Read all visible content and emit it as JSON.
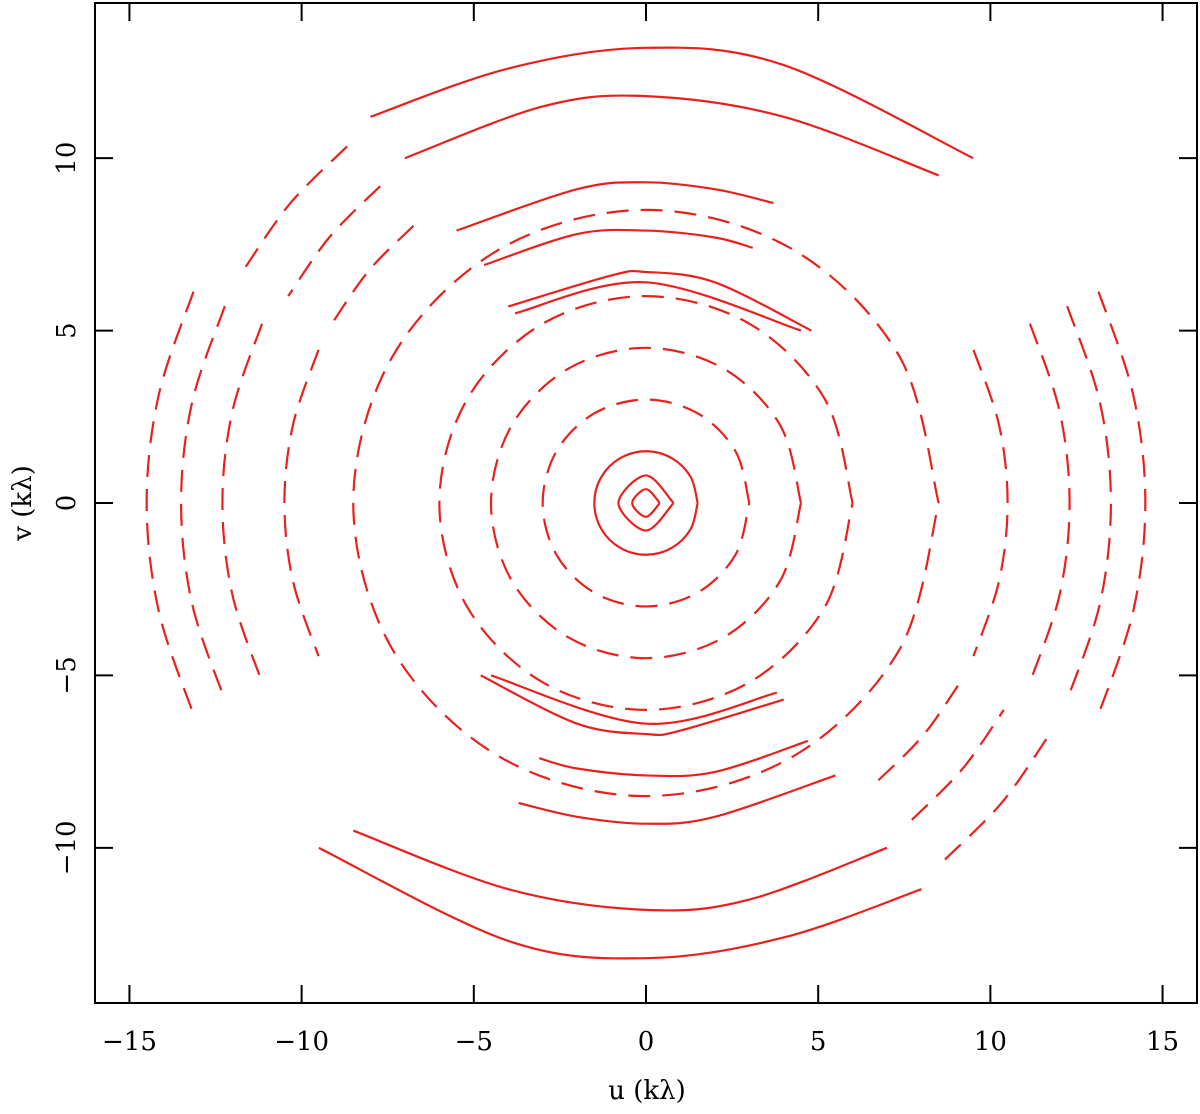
{
  "chart_data": {
    "type": "line",
    "xlabel": "u (kλ)",
    "ylabel": "v (kλ)",
    "xlim": [
      -16,
      16
    ],
    "ylim": [
      -14.5,
      14.5
    ],
    "xticks": [
      {
        "value": -15,
        "label": "−15"
      },
      {
        "value": -10,
        "label": "−10"
      },
      {
        "value": -5,
        "label": "−5"
      },
      0,
      5,
      10,
      15
    ],
    "yticks": [
      {
        "value": -10,
        "label": "−10"
      },
      {
        "value": -5,
        "label": "−5"
      },
      0,
      5,
      10
    ],
    "series": [
      {
        "color": "#e8211d",
        "style": "solid",
        "x": [
          -8,
          -4,
          0,
          4,
          9.5
        ],
        "y": [
          11.2,
          12.6,
          13.2,
          12.7,
          10
        ]
      },
      {
        "color": "#e8211d",
        "style": "solid",
        "x": [
          8,
          4,
          0,
          -4,
          -9.5
        ],
        "y": [
          -11.2,
          -12.6,
          -13.2,
          -12.7,
          -10
        ]
      },
      {
        "color": "#e8211d",
        "style": "solid",
        "x": [
          -7,
          -3,
          0,
          4,
          8.5
        ],
        "y": [
          10,
          11.5,
          11.8,
          11.2,
          9.5
        ]
      },
      {
        "color": "#e8211d",
        "style": "solid",
        "x": [
          7,
          3,
          0,
          -4,
          -8.5
        ],
        "y": [
          -10,
          -11.5,
          -11.8,
          -11.2,
          -9.5
        ]
      },
      {
        "color": "#e8211d",
        "style": "solid",
        "x": [
          -5.5,
          -2,
          0,
          2,
          3.7
        ],
        "y": [
          7.9,
          9.1,
          9.3,
          9.1,
          8.7
        ]
      },
      {
        "color": "#e8211d",
        "style": "solid",
        "x": [
          5.5,
          2,
          0,
          -2,
          -3.7
        ],
        "y": [
          -7.9,
          -9.1,
          -9.3,
          -9.1,
          -8.7
        ]
      },
      {
        "color": "#e8211d",
        "style": "solid",
        "x": [
          -4.7,
          -2,
          0,
          2,
          3.1
        ],
        "y": [
          6.9,
          7.8,
          7.9,
          7.7,
          7.4
        ]
      },
      {
        "color": "#e8211d",
        "style": "solid",
        "x": [
          4.7,
          2,
          0,
          -2,
          -3.1
        ],
        "y": [
          -6.9,
          -7.8,
          -7.9,
          -7.7,
          -7.4
        ]
      },
      {
        "color": "#e8211d",
        "style": "solid",
        "x": [
          -4,
          -1,
          0,
          2,
          4.8
        ],
        "y": [
          5.7,
          6.6,
          6.7,
          6.4,
          5
        ]
      },
      {
        "color": "#e8211d",
        "style": "solid",
        "x": [
          4,
          1,
          0,
          -2,
          -4.8
        ],
        "y": [
          -5.7,
          -6.6,
          -6.7,
          -6.4,
          -5
        ]
      },
      {
        "color": "#e8211d",
        "style": "solid",
        "x": [
          -3.8,
          0,
          4.5
        ],
        "y": [
          5.5,
          6.4,
          5
        ]
      },
      {
        "color": "#e8211d",
        "style": "solid",
        "x": [
          3.8,
          0,
          -4.5
        ],
        "y": [
          -5.5,
          -6.4,
          -5
        ]
      },
      {
        "color": "#e8211d",
        "style": "dashed",
        "x": [
          -13.14,
          -14.15,
          -14.5,
          -14.15,
          -13.14
        ],
        "y": [
          6.13,
          3.13,
          0,
          -3.13,
          -6.13
        ]
      },
      {
        "color": "#e8211d",
        "style": "dashed",
        "x": [
          13.14,
          14.15,
          14.5,
          14.15,
          13.14
        ],
        "y": [
          6.13,
          3.13,
          0,
          -3.13,
          -6.13
        ]
      },
      {
        "color": "#e8211d",
        "style": "dashed",
        "x": [
          -12.23,
          -13.18,
          -13.5,
          -13.18,
          -12.23
        ],
        "y": [
          5.71,
          2.92,
          0,
          -2.92,
          -5.71
        ]
      },
      {
        "color": "#e8211d",
        "style": "dashed",
        "x": [
          12.23,
          13.18,
          13.5,
          13.18,
          12.23
        ],
        "y": [
          5.71,
          2.92,
          0,
          -2.92,
          -5.71
        ]
      },
      {
        "color": "#e8211d",
        "style": "dashed",
        "x": [
          -11.15,
          -12.01,
          -12.3,
          -12.01,
          -11.15
        ],
        "y": [
          5.2,
          2.66,
          0,
          -2.66,
          -5.2
        ]
      },
      {
        "color": "#e8211d",
        "style": "dashed",
        "x": [
          11.15,
          12.01,
          12.3,
          12.01,
          11.15
        ],
        "y": [
          5.2,
          2.66,
          0,
          -2.66,
          -5.2
        ]
      },
      {
        "color": "#e8211d",
        "style": "dashed",
        "x": [
          -9.51,
          -10.25,
          -10.5,
          -10.25,
          -9.51
        ],
        "y": [
          4.44,
          2.27,
          0,
          -2.27,
          -4.44
        ]
      },
      {
        "color": "#e8211d",
        "style": "dashed",
        "x": [
          9.51,
          10.25,
          10.5,
          10.25,
          9.51
        ],
        "y": [
          4.44,
          2.27,
          0,
          -2.27,
          -4.44
        ]
      },
      {
        "color": "#e8211d",
        "style": "dashed",
        "x": [
          -8.68,
          -10.34,
          -11.69
        ],
        "y": [
          10.34,
          8.68,
          6.75
        ]
      },
      {
        "color": "#e8211d",
        "style": "dashed",
        "x": [
          8.68,
          10.34,
          11.69
        ],
        "y": [
          -10.34,
          -8.68,
          -6.75
        ]
      },
      {
        "color": "#e8211d",
        "style": "dashed",
        "x": [
          -7.72,
          -9.19,
          -10.39
        ],
        "y": [
          9.19,
          7.71,
          6
        ]
      },
      {
        "color": "#e8211d",
        "style": "dashed",
        "x": [
          7.72,
          9.19,
          10.39
        ],
        "y": [
          -9.19,
          -7.71,
          -6
        ]
      },
      {
        "color": "#e8211d",
        "style": "dashed",
        "x": [
          -6.75,
          -8.04,
          -9.09
        ],
        "y": [
          8.04,
          6.75,
          5.25
        ]
      },
      {
        "color": "#e8211d",
        "style": "dashed",
        "x": [
          6.75,
          8.04,
          9.09
        ],
        "y": [
          -8.04,
          -6.75,
          -5.25
        ]
      },
      {
        "color": "#e8211d",
        "style": "dashed",
        "x": [
          8.5,
          7.36,
          4.25,
          0,
          -4.25,
          -7.36,
          -8.5,
          -7.36,
          -4.25,
          0,
          4.25,
          7.36,
          8.5
        ],
        "y": [
          0,
          4.25,
          7.36,
          8.5,
          7.36,
          4.25,
          0,
          -4.25,
          -7.36,
          -8.5,
          -7.36,
          -4.25,
          0
        ]
      },
      {
        "color": "#e8211d",
        "style": "dashed",
        "x": [
          6,
          5.2,
          3,
          0,
          -3,
          -5.2,
          -6,
          -5.2,
          -3,
          0,
          3,
          5.2,
          6
        ],
        "y": [
          0,
          3,
          5.2,
          6,
          5.2,
          3,
          0,
          -3,
          -5.2,
          -6,
          -5.2,
          -3,
          0
        ]
      },
      {
        "color": "#e8211d",
        "style": "dashed",
        "x": [
          4.5,
          3.9,
          2.25,
          0,
          -2.25,
          -3.9,
          -4.5,
          -3.9,
          -2.25,
          0,
          2.25,
          3.9,
          4.5
        ],
        "y": [
          0,
          2.25,
          3.9,
          4.5,
          3.9,
          2.25,
          0,
          -2.25,
          -3.9,
          -4.5,
          -3.9,
          -2.25,
          0
        ]
      },
      {
        "color": "#e8211d",
        "style": "dashed",
        "x": [
          3,
          2.6,
          1.5,
          0,
          -1.5,
          -2.6,
          -3,
          -2.6,
          -1.5,
          0,
          1.5,
          2.6,
          3
        ],
        "y": [
          0,
          1.5,
          2.6,
          3,
          2.6,
          1.5,
          0,
          -1.5,
          -2.6,
          -3,
          -2.6,
          -1.5,
          0
        ]
      },
      {
        "color": "#e8211d",
        "style": "solid",
        "x": [
          1.5,
          1.3,
          0.75,
          0,
          -0.75,
          -1.3,
          -1.5,
          -1.3,
          -0.75,
          0,
          0.75,
          1.3,
          1.5
        ],
        "y": [
          0,
          0.75,
          1.3,
          1.5,
          1.3,
          0.75,
          0,
          -0.75,
          -1.3,
          -1.5,
          -1.3,
          -0.75,
          0
        ]
      },
      {
        "color": "#e8211d",
        "style": "solid",
        "x": [
          0.8,
          0,
          -0.8,
          0,
          0.8
        ],
        "y": [
          0,
          0.8,
          0,
          -0.8,
          0
        ]
      },
      {
        "color": "#e8211d",
        "style": "solid",
        "x": [
          0.4,
          0,
          -0.4,
          0,
          0.4
        ],
        "y": [
          0,
          0.4,
          0,
          -0.4,
          0
        ]
      }
    ]
  }
}
